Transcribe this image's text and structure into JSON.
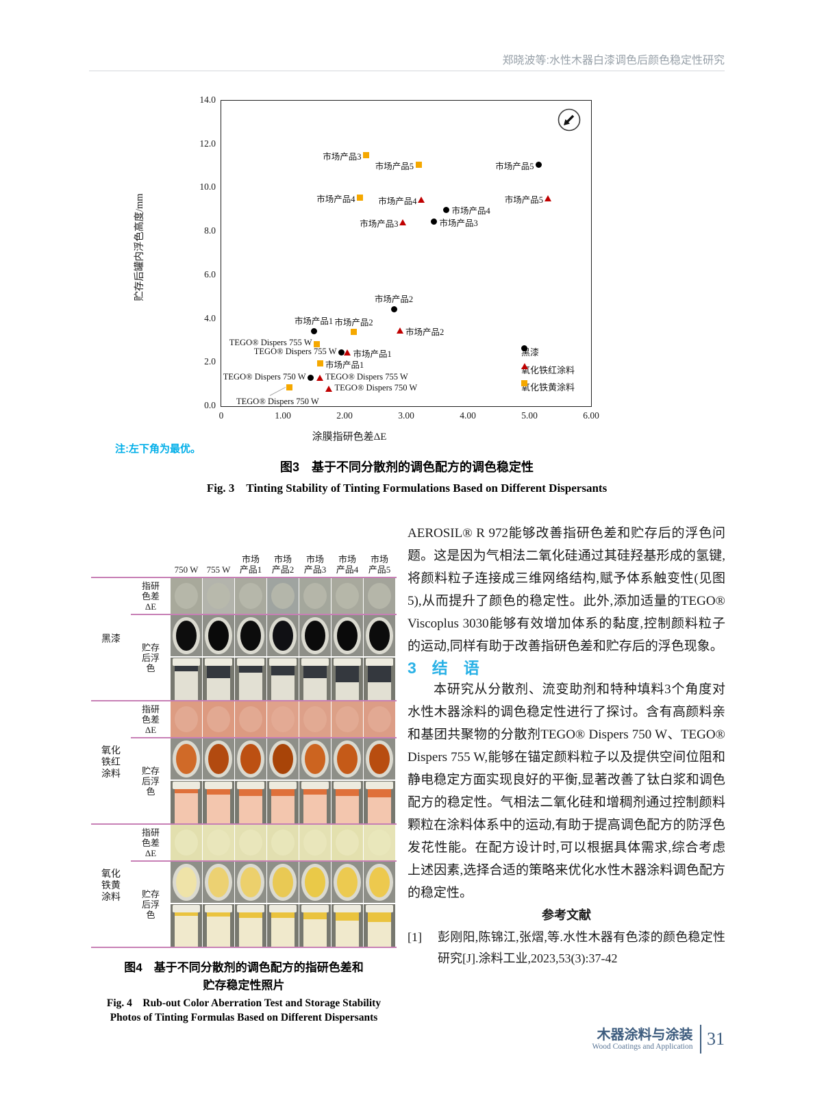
{
  "page": {
    "header_title": "郑晓波等:水性木器白漆调色后颜色稳定性研究",
    "footer": {
      "journal_cn": "木器涂料与涂装",
      "journal_en": "Wood Coatings and Application",
      "page_number": "31"
    }
  },
  "colors": {
    "accent_cyan": "#00aee8",
    "heading_cyan": "#29b1e6",
    "series_black": "#000000",
    "series_red": "#c00000",
    "series_yellow": "#f5a800",
    "fig4_rule_pink": "#c77fb5",
    "footer_blue": "#3d5c7e"
  },
  "chart_data": {
    "type": "scatter",
    "note": "注:左下角为最优。",
    "caption_cn": "图3　基于不同分散剂的调色配方的调色稳定性",
    "caption_en": "Fig. 3　Tinting Stability of Tinting Formulations Based on Different Dispersants",
    "xlabel": "涂膜指研色差ΔE",
    "ylabel": "贮存后罐内浮色高度/mm",
    "xlim": [
      0,
      6
    ],
    "ylim": [
      0,
      14
    ],
    "x_ticks": [
      "0",
      "1.00",
      "2.00",
      "3.00",
      "4.00",
      "5.00",
      "6.00"
    ],
    "y_ticks": [
      "0.0",
      "2.0",
      "4.0",
      "6.0",
      "8.0",
      "10.0",
      "12.0",
      "14.0"
    ],
    "grid": false,
    "legend_position": "inside-right",
    "annotation_icon": "arrow-to-lower-left-in-circle",
    "series": [
      {
        "name": "黑漆",
        "marker": "circle",
        "color": "#000000",
        "points": [
          {
            "label": "TEGO® Dispers 750 W",
            "x": 1.45,
            "y": 1.3,
            "pos": "left"
          },
          {
            "label": "TEGO® Dispers 755 W",
            "x": 1.95,
            "y": 2.45,
            "pos": "left"
          },
          {
            "label": "市场产品1",
            "x": 1.5,
            "y": 3.45,
            "pos": "above"
          },
          {
            "label": "市场产品2",
            "x": 2.8,
            "y": 4.45,
            "pos": "above"
          },
          {
            "label": "市场产品3",
            "x": 3.45,
            "y": 8.45,
            "pos": "right"
          },
          {
            "label": "市场产品4",
            "x": 3.65,
            "y": 9.0,
            "pos": "right"
          },
          {
            "label": "市场产品5",
            "x": 5.15,
            "y": 11.05,
            "pos": "left"
          }
        ]
      },
      {
        "name": "氧化铁红涂料",
        "marker": "triangle",
        "color": "#c00000",
        "points": [
          {
            "label": "TEGO® Dispers 750 W",
            "x": 1.75,
            "y": 0.8,
            "pos": "right"
          },
          {
            "label": "TEGO® Dispers 755 W",
            "x": 1.6,
            "y": 1.3,
            "pos": "right"
          },
          {
            "label": "市场产品1",
            "x": 2.05,
            "y": 2.45,
            "pos": "right"
          },
          {
            "label": "市场产品2",
            "x": 2.9,
            "y": 3.45,
            "pos": "right"
          },
          {
            "label": "市场产品3",
            "x": 2.95,
            "y": 8.4,
            "pos": "left"
          },
          {
            "label": "市场产品4",
            "x": 3.25,
            "y": 9.45,
            "pos": "left"
          },
          {
            "label": "市场产品5",
            "x": 5.3,
            "y": 9.5,
            "pos": "left"
          }
        ]
      },
      {
        "name": "氧化铁黄涂料",
        "marker": "square",
        "color": "#f5a800",
        "points": [
          {
            "label": "TEGO® Dispers 750 W",
            "x": 1.1,
            "y": 0.85,
            "pos": "below-left",
            "leader": true
          },
          {
            "label": "市场产品1",
            "x": 1.6,
            "y": 1.95,
            "pos": "right"
          },
          {
            "label": "TEGO® Dispers 755 W",
            "x": 1.55,
            "y": 2.85,
            "pos": "left"
          },
          {
            "label": "市场产品2",
            "x": 2.15,
            "y": 3.4,
            "pos": "above"
          },
          {
            "label": "市场产品4",
            "x": 2.25,
            "y": 9.55,
            "pos": "left"
          },
          {
            "label": "市场产品5",
            "x": 3.2,
            "y": 11.05,
            "pos": "left"
          },
          {
            "label": "市场产品3",
            "x": 2.35,
            "y": 11.5,
            "pos": "left"
          }
        ]
      }
    ],
    "legend": [
      {
        "label": "黑漆",
        "marker": "circle",
        "y": 2.5
      },
      {
        "label": "氧化铁红涂料",
        "marker": "triangle",
        "y": 1.7
      },
      {
        "label": "氧化铁黄涂料",
        "marker": "square",
        "y": 0.92
      }
    ]
  },
  "fig4": {
    "caption_cn_line1": "图4　基于不同分散剂的调色配方的指研色差和",
    "caption_cn_line2": "贮存稳定性照片",
    "caption_en_line1": "Fig. 4　Rub-out Color Aberration Test and Storage Stability",
    "caption_en_line2": "Photos of Tinting Formulas Based on Different Dispersants",
    "column_headers": [
      "750 W",
      "755 W",
      "市场\n产品1",
      "市场\n产品2",
      "市场\n产品3",
      "市场\n产品4",
      "市场\n产品5"
    ],
    "row_labels": {
      "rubout": "指研\n色差\nΔE",
      "storage": "贮存\n后浮\n色"
    },
    "groups": [
      {
        "label": "黑漆",
        "swatch_colors": [
          "#a8a99b",
          "#b3b4ac",
          "#a9aa9e",
          "#9fa4a0",
          "#a4a79c",
          "#a8a99d",
          "#a3a49a"
        ],
        "swatch_circle": "#b9baac",
        "top_colors": [
          "#0d0d0d",
          "#0a0a0a",
          "#0c0c0c",
          "#101014",
          "#0b0b0b",
          "#0a0a0a",
          "#0c0c0c"
        ],
        "top_ring": "#d8d8ce",
        "body_color": "#e2e0d3",
        "band_color": "#34383e",
        "band_heights": [
          8,
          18,
          10,
          14,
          18,
          24,
          24
        ]
      },
      {
        "label": "氧化\n铁红\n涂料",
        "swatch_colors": [
          "#dd9c82",
          "#dd9a80",
          "#dc9a81",
          "#dfa28b",
          "#dda089",
          "#dca087",
          "#dc9d86"
        ],
        "swatch_circle": "#e3ac96",
        "top_colors": [
          "#d06a28",
          "#b24a10",
          "#bc5012",
          "#a84408",
          "#cc6420",
          "#c55a18",
          "#b84d10"
        ],
        "top_ring": "#e7e3d8",
        "body_color": "#f3c6ae",
        "band_color": "#df703a",
        "band_heights": [
          6,
          8,
          10,
          10,
          8,
          10,
          12
        ]
      },
      {
        "label": "氧化\n铁黄\n涂料",
        "swatch_colors": [
          "#e2dfae",
          "#e5e2b4",
          "#e3e0b2",
          "#e2dfb0",
          "#e4e1b3",
          "#e3e0ae",
          "#e6e3b6"
        ],
        "swatch_circle": "#eae7bd",
        "top_colors": [
          "#efe3a8",
          "#ecd172",
          "#ecd06c",
          "#e9c954",
          "#eac948",
          "#ecca50",
          "#edc94e"
        ],
        "top_ring": "#e9e5da",
        "body_color": "#f0e9cc",
        "band_color": "#eac33e",
        "band_heights": [
          5,
          6,
          8,
          8,
          10,
          12,
          14
        ]
      }
    ]
  },
  "text": {
    "para1": "AEROSIL® R 972能够改善指研色差和贮存后的浮色问题。这是因为气相法二氧化硅通过其硅羟基形成的氢键,将颜料粒子连接成三维网络结构,赋予体系触变性(见图5),从而提升了颜色的稳定性。此外,添加适量的TEGO® Viscoplus 3030能够有效增加体系的黏度,控制颜料粒子的运动,同样有助于改善指研色差和贮存后的浮色现象。",
    "section_heading": "3　结　语",
    "para2": "本研究从分散剂、流变助剂和特种填料3个角度对水性木器涂料的调色稳定性进行了探讨。含有高颜料亲和基团共聚物的分散剂TEGO® Dispers 750 W、TEGO® Dispers 755 W,能够在锚定颜料粒子以及提供空间位阻和静电稳定方面实现良好的平衡,显著改善了钛白浆和调色配方的稳定性。气相法二氧化硅和增稠剂通过控制颜料颗粒在涂料体系中的运动,有助于提高调色配方的防浮色发花性能。在配方设计时,可以根据具体需求,综合考虑上述因素,选择合适的策略来优化水性木器涂料调色配方的稳定性。",
    "references_heading": "参考文献",
    "reference1_num": "[1]",
    "reference1_text": "彭刚阳,陈锦江,张熠,等.水性木器有色漆的颜色稳定性研究[J].涂料工业,2023,53(3):37-42"
  }
}
